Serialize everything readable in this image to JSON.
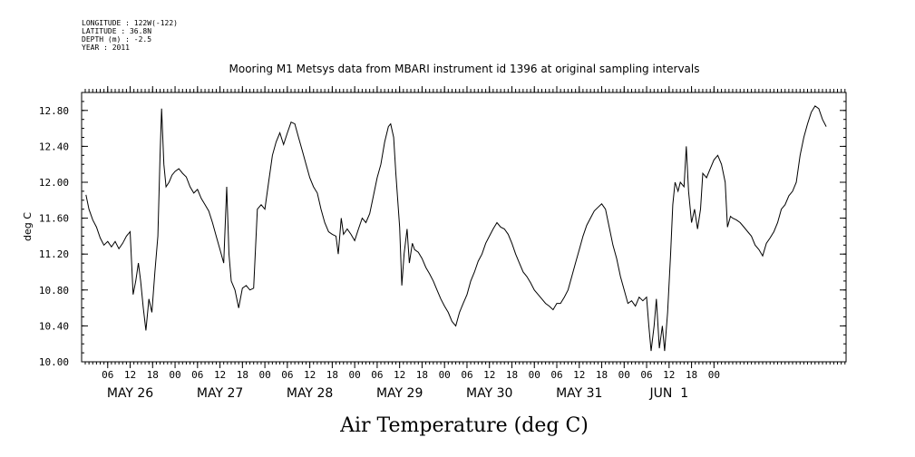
{
  "header": {
    "longitude": "LONGITUDE : 122W(-122)",
    "latitude": "LATITUDE : 36.8N",
    "depth": "DEPTH (m) : -2.5",
    "year": "YEAR : 2011"
  },
  "chart_data": {
    "type": "line",
    "title": "Mooring M1 Metsys data from MBARI instrument id 1396 at original sampling intervals",
    "ylabel": "deg C",
    "xlabel": "Air Temperature (deg C)",
    "ylim": [
      10.0,
      13.0
    ],
    "xlim_hours": [
      0,
      204
    ],
    "y_ticks": [
      "10.00",
      "10.40",
      "10.80",
      "11.20",
      "11.60",
      "12.00",
      "12.40",
      "12.80"
    ],
    "y_tick_values": [
      10.0,
      10.4,
      10.8,
      11.2,
      11.6,
      12.0,
      12.4,
      12.8
    ],
    "x_hour_ticks": [
      "06",
      "12",
      "18",
      "00",
      "06",
      "12",
      "18",
      "00",
      "06",
      "12",
      "18",
      "00",
      "06",
      "12",
      "18",
      "00",
      "06",
      "12",
      "18",
      "00",
      "06",
      "12",
      "18",
      "00",
      "06",
      "12",
      "18",
      "00"
    ],
    "x_day_labels": [
      "MAY 26",
      "MAY 27",
      "MAY 28",
      "MAY 29",
      "MAY 30",
      "MAY 31",
      "JUN  1"
    ],
    "grid": false,
    "series": [
      {
        "points": [
          [
            0.2,
            11.86
          ],
          [
            1,
            11.7
          ],
          [
            2,
            11.58
          ],
          [
            3,
            11.5
          ],
          [
            4,
            11.38
          ],
          [
            5,
            11.3
          ],
          [
            6,
            11.34
          ],
          [
            7,
            11.28
          ],
          [
            8,
            11.34
          ],
          [
            9,
            11.26
          ],
          [
            10,
            11.32
          ],
          [
            11,
            11.4
          ],
          [
            12,
            11.45
          ],
          [
            12.8,
            10.75
          ],
          [
            13.5,
            10.9
          ],
          [
            14.2,
            11.1
          ],
          [
            14.8,
            10.9
          ],
          [
            15.5,
            10.6
          ],
          [
            16.2,
            10.35
          ],
          [
            17,
            10.7
          ],
          [
            17.8,
            10.55
          ],
          [
            18.6,
            11.0
          ],
          [
            19.4,
            11.4
          ],
          [
            20,
            12.3
          ],
          [
            20.4,
            12.82
          ],
          [
            21,
            12.2
          ],
          [
            21.6,
            11.95
          ],
          [
            22.4,
            12.0
          ],
          [
            23.2,
            12.08
          ],
          [
            24,
            12.12
          ],
          [
            25,
            12.15
          ],
          [
            26,
            12.1
          ],
          [
            27,
            12.06
          ],
          [
            28,
            11.95
          ],
          [
            29,
            11.88
          ],
          [
            30,
            11.92
          ],
          [
            31,
            11.82
          ],
          [
            32,
            11.75
          ],
          [
            33,
            11.68
          ],
          [
            34,
            11.55
          ],
          [
            35,
            11.4
          ],
          [
            36,
            11.25
          ],
          [
            37,
            11.1
          ],
          [
            37.8,
            11.95
          ],
          [
            38.4,
            11.2
          ],
          [
            39,
            10.9
          ],
          [
            40,
            10.8
          ],
          [
            41,
            10.6
          ],
          [
            42,
            10.82
          ],
          [
            43,
            10.85
          ],
          [
            44,
            10.8
          ],
          [
            45,
            10.82
          ],
          [
            46,
            11.7
          ],
          [
            47,
            11.75
          ],
          [
            48,
            11.7
          ],
          [
            49,
            12.0
          ],
          [
            50,
            12.3
          ],
          [
            51,
            12.45
          ],
          [
            52,
            12.55
          ],
          [
            53,
            12.42
          ],
          [
            54,
            12.55
          ],
          [
            55,
            12.67
          ],
          [
            56,
            12.65
          ],
          [
            57,
            12.5
          ],
          [
            58,
            12.35
          ],
          [
            59,
            12.2
          ],
          [
            60,
            12.05
          ],
          [
            61,
            11.95
          ],
          [
            62,
            11.88
          ],
          [
            63,
            11.7
          ],
          [
            64,
            11.55
          ],
          [
            65,
            11.45
          ],
          [
            66,
            11.42
          ],
          [
            67,
            11.4
          ],
          [
            67.6,
            11.2
          ],
          [
            68.4,
            11.6
          ],
          [
            69,
            11.42
          ],
          [
            70,
            11.48
          ],
          [
            71,
            11.42
          ],
          [
            72,
            11.35
          ],
          [
            73,
            11.48
          ],
          [
            74,
            11.6
          ],
          [
            75,
            11.55
          ],
          [
            76,
            11.65
          ],
          [
            77,
            11.85
          ],
          [
            78,
            12.05
          ],
          [
            79,
            12.2
          ],
          [
            80,
            12.45
          ],
          [
            81,
            12.62
          ],
          [
            81.6,
            12.65
          ],
          [
            82.4,
            12.5
          ],
          [
            83,
            12.1
          ],
          [
            84,
            11.5
          ],
          [
            84.6,
            10.85
          ],
          [
            85.2,
            11.2
          ],
          [
            86,
            11.48
          ],
          [
            86.6,
            11.1
          ],
          [
            87.4,
            11.32
          ],
          [
            88,
            11.25
          ],
          [
            89,
            11.22
          ],
          [
            90,
            11.15
          ],
          [
            91,
            11.05
          ],
          [
            92,
            10.98
          ],
          [
            93,
            10.9
          ],
          [
            94,
            10.8
          ],
          [
            95,
            10.7
          ],
          [
            96,
            10.62
          ],
          [
            97,
            10.55
          ],
          [
            98,
            10.45
          ],
          [
            99,
            10.4
          ],
          [
            100,
            10.55
          ],
          [
            101,
            10.65
          ],
          [
            102,
            10.75
          ],
          [
            103,
            10.9
          ],
          [
            104,
            11.0
          ],
          [
            105,
            11.12
          ],
          [
            106,
            11.2
          ],
          [
            107,
            11.32
          ],
          [
            108,
            11.4
          ],
          [
            109,
            11.48
          ],
          [
            110,
            11.55
          ],
          [
            111,
            11.5
          ],
          [
            112,
            11.48
          ],
          [
            113,
            11.42
          ],
          [
            114,
            11.32
          ],
          [
            115,
            11.2
          ],
          [
            116,
            11.1
          ],
          [
            117,
            11.0
          ],
          [
            118,
            10.95
          ],
          [
            119,
            10.88
          ],
          [
            120,
            10.8
          ],
          [
            121,
            10.75
          ],
          [
            122,
            10.7
          ],
          [
            123,
            10.65
          ],
          [
            124,
            10.62
          ],
          [
            125,
            10.58
          ],
          [
            126,
            10.65
          ],
          [
            127,
            10.65
          ],
          [
            128,
            10.72
          ],
          [
            129,
            10.8
          ],
          [
            130,
            10.95
          ],
          [
            131,
            11.1
          ],
          [
            132,
            11.25
          ],
          [
            133,
            11.4
          ],
          [
            134,
            11.52
          ],
          [
            135,
            11.6
          ],
          [
            136,
            11.68
          ],
          [
            137,
            11.72
          ],
          [
            138,
            11.76
          ],
          [
            139,
            11.7
          ],
          [
            140,
            11.5
          ],
          [
            141,
            11.3
          ],
          [
            142,
            11.15
          ],
          [
            143,
            10.95
          ],
          [
            144,
            10.8
          ],
          [
            145,
            10.65
          ],
          [
            146,
            10.68
          ],
          [
            147,
            10.62
          ],
          [
            148,
            10.72
          ],
          [
            149,
            10.68
          ],
          [
            150,
            10.72
          ],
          [
            150.6,
            10.4
          ],
          [
            151.2,
            10.12
          ],
          [
            152,
            10.4
          ],
          [
            152.6,
            10.7
          ],
          [
            153.4,
            10.15
          ],
          [
            154.2,
            10.4
          ],
          [
            154.8,
            10.12
          ],
          [
            155.6,
            10.55
          ],
          [
            156.4,
            11.2
          ],
          [
            157,
            11.75
          ],
          [
            157.6,
            12.0
          ],
          [
            158.4,
            11.9
          ],
          [
            159,
            12.0
          ],
          [
            160,
            11.95
          ],
          [
            160.6,
            12.4
          ],
          [
            161.2,
            11.9
          ],
          [
            162,
            11.55
          ],
          [
            162.8,
            11.7
          ],
          [
            163.6,
            11.48
          ],
          [
            164.4,
            11.7
          ],
          [
            165,
            12.1
          ],
          [
            166,
            12.05
          ],
          [
            167,
            12.15
          ],
          [
            168,
            12.25
          ],
          [
            169,
            12.3
          ],
          [
            170,
            12.2
          ],
          [
            171,
            12.0
          ],
          [
            171.6,
            11.5
          ],
          [
            172.4,
            11.62
          ],
          [
            173,
            11.6
          ],
          [
            174,
            11.58
          ],
          [
            175,
            11.55
          ],
          [
            176,
            11.5
          ],
          [
            177,
            11.45
          ],
          [
            178,
            11.4
          ],
          [
            179,
            11.3
          ],
          [
            180,
            11.25
          ],
          [
            181,
            11.18
          ],
          [
            182,
            11.32
          ],
          [
            183,
            11.38
          ],
          [
            184,
            11.45
          ],
          [
            185,
            11.55
          ],
          [
            186,
            11.7
          ],
          [
            187,
            11.75
          ],
          [
            188,
            11.85
          ],
          [
            189,
            11.9
          ],
          [
            190,
            12.0
          ],
          [
            191,
            12.3
          ],
          [
            192,
            12.5
          ],
          [
            193,
            12.65
          ],
          [
            194,
            12.78
          ],
          [
            195,
            12.85
          ],
          [
            196,
            12.82
          ],
          [
            197,
            12.7
          ],
          [
            198,
            12.62
          ]
        ]
      }
    ]
  }
}
